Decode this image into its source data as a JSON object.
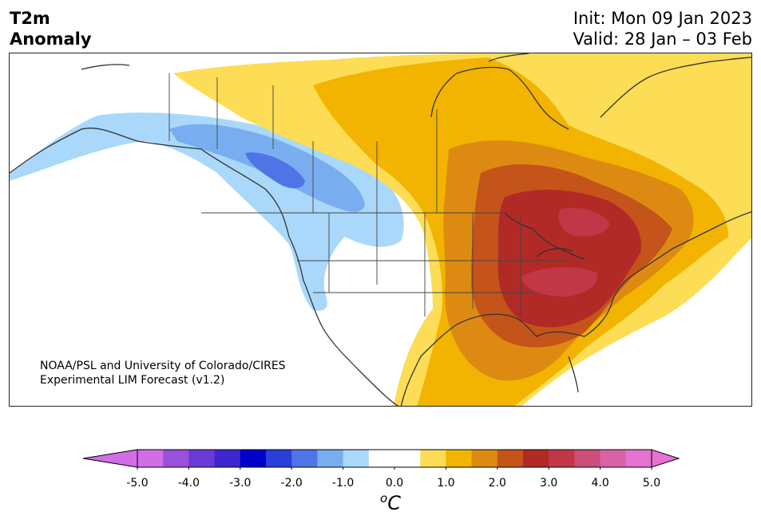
{
  "title": {
    "line1": "T2m",
    "line2": "Anomaly"
  },
  "init": "Init: Mon 09 Jan 2023",
  "valid": "Valid: 28 Jan – 03 Feb",
  "credit": {
    "line1": "NOAA/PSL and University of Colorado/CIRES",
    "line2": "Experimental LIM Forecast (v1.2)"
  },
  "colorbar": {
    "ticks": [
      "-5.0",
      "-4.0",
      "-3.0",
      "-2.0",
      "-1.0",
      "0.0",
      "1.0",
      "2.0",
      "3.0",
      "4.0",
      "5.0"
    ],
    "unit_sup": "o",
    "unit": "C",
    "range": [
      -5.0,
      5.0
    ],
    "step": 0.5,
    "colors": [
      "#d16ee6",
      "#9b50db",
      "#6a3ad6",
      "#3e27cf",
      "#0000cc",
      "#2a3ed9",
      "#4f74e5",
      "#78aef0",
      "#a9d8fa",
      "#ffffff",
      "#ffffff",
      "#fddd55",
      "#f2b400",
      "#dd8a12",
      "#c4541a",
      "#b22a26",
      "#c23748",
      "#cc4d79",
      "#d962a6",
      "#e672d2"
    ],
    "extend_min_color": "#d16ee6",
    "extend_max_color": "#e672d2"
  }
}
